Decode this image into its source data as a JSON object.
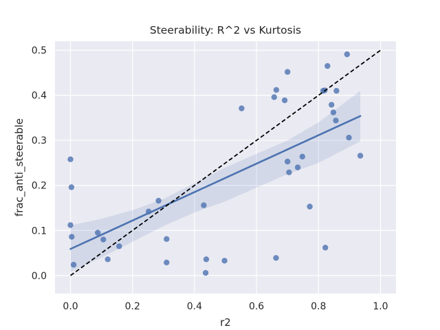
{
  "chart_data": {
    "type": "scatter",
    "title": "Steerability: R^2 vs Kurtosis",
    "xlabel": "r2",
    "ylabel": "frac_anti_steerable",
    "xlim": [
      -0.05,
      1.05
    ],
    "ylim": [
      -0.04,
      0.52
    ],
    "xticks": [
      0.0,
      0.2,
      0.4,
      0.6,
      0.8,
      1.0
    ],
    "xtick_labels": [
      "0.0",
      "0.2",
      "0.4",
      "0.6",
      "0.8",
      "1.0"
    ],
    "yticks": [
      0.0,
      0.1,
      0.2,
      0.3,
      0.4,
      0.5
    ],
    "ytick_labels": [
      "0.0",
      "0.1",
      "0.2",
      "0.3",
      "0.4",
      "0.5"
    ],
    "grid": true,
    "colors": {
      "background": "#eaeaf2",
      "grid": "#ffffff",
      "points": "#4c72b0",
      "fit_line": "#4c72b0",
      "band": "#4c72b0",
      "diagonal": "#000000"
    },
    "points": [
      {
        "x": 0.0,
        "y": 0.258
      },
      {
        "x": 0.003,
        "y": 0.196
      },
      {
        "x": 0.0,
        "y": 0.112
      },
      {
        "x": 0.004,
        "y": 0.086
      },
      {
        "x": 0.01,
        "y": 0.024
      },
      {
        "x": 0.088,
        "y": 0.095
      },
      {
        "x": 0.106,
        "y": 0.08
      },
      {
        "x": 0.12,
        "y": 0.036
      },
      {
        "x": 0.157,
        "y": 0.065
      },
      {
        "x": 0.252,
        "y": 0.142
      },
      {
        "x": 0.284,
        "y": 0.166
      },
      {
        "x": 0.31,
        "y": 0.081
      },
      {
        "x": 0.31,
        "y": 0.029
      },
      {
        "x": 0.43,
        "y": 0.156
      },
      {
        "x": 0.438,
        "y": 0.036
      },
      {
        "x": 0.436,
        "y": 0.006
      },
      {
        "x": 0.497,
        "y": 0.033
      },
      {
        "x": 0.552,
        "y": 0.371
      },
      {
        "x": 0.657,
        "y": 0.396
      },
      {
        "x": 0.664,
        "y": 0.412
      },
      {
        "x": 0.663,
        "y": 0.039
      },
      {
        "x": 0.691,
        "y": 0.389
      },
      {
        "x": 0.7,
        "y": 0.452
      },
      {
        "x": 0.7,
        "y": 0.253
      },
      {
        "x": 0.705,
        "y": 0.229
      },
      {
        "x": 0.733,
        "y": 0.24
      },
      {
        "x": 0.748,
        "y": 0.264
      },
      {
        "x": 0.772,
        "y": 0.153
      },
      {
        "x": 0.815,
        "y": 0.41
      },
      {
        "x": 0.82,
        "y": 0.411
      },
      {
        "x": 0.822,
        "y": 0.062
      },
      {
        "x": 0.829,
        "y": 0.465
      },
      {
        "x": 0.842,
        "y": 0.379
      },
      {
        "x": 0.848,
        "y": 0.362
      },
      {
        "x": 0.856,
        "y": 0.344
      },
      {
        "x": 0.858,
        "y": 0.41
      },
      {
        "x": 0.892,
        "y": 0.491
      },
      {
        "x": 0.898,
        "y": 0.306
      },
      {
        "x": 0.935,
        "y": 0.266
      }
    ],
    "regression": {
      "x": [
        0.0,
        0.935
      ],
      "y": [
        0.059,
        0.354
      ]
    },
    "confidence_band": {
      "x": [
        0.0,
        0.1,
        0.2,
        0.3,
        0.4,
        0.5,
        0.6,
        0.7,
        0.8,
        0.935
      ],
      "upper": [
        0.111,
        0.126,
        0.145,
        0.17,
        0.205,
        0.24,
        0.27,
        0.3,
        0.34,
        0.41
      ],
      "lower": [
        0.008,
        0.04,
        0.075,
        0.11,
        0.14,
        0.165,
        0.195,
        0.225,
        0.25,
        0.298
      ]
    },
    "reference_line": {
      "x": [
        0.0,
        1.0
      ],
      "y": [
        0.0,
        0.5
      ],
      "style": "dashed"
    }
  }
}
